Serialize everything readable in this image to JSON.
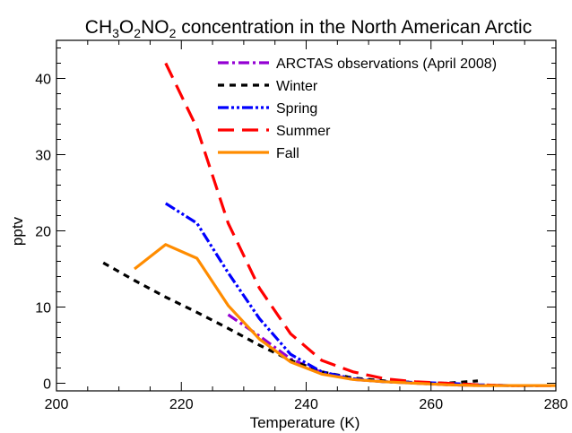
{
  "chart_data": {
    "type": "line",
    "title": {
      "prefix": "CH",
      "sub1": "3",
      "mid1": "O",
      "sub2": "2",
      "mid2": "NO",
      "sub3": "2",
      "suffix": " concentration in the North American Arctic"
    },
    "xlabel": "Temperature (K)",
    "ylabel": "pptv",
    "xlim": [
      200,
      280
    ],
    "ylim": [
      -1,
      45
    ],
    "xticks": [
      200,
      220,
      240,
      260,
      280
    ],
    "yticks": [
      0,
      10,
      20,
      30,
      40
    ],
    "legend_position": "top-right",
    "series": [
      {
        "name": "ARCTAS observations (April 2008)",
        "color": "#9400D3",
        "dash": "dashdot",
        "x": [
          227.5,
          232.5,
          237.5,
          242.5,
          247.5,
          252.5,
          257.5,
          262.5,
          267.5
        ],
        "y": [
          9.0,
          6.2,
          3.2,
          1.4,
          0.5,
          0.2,
          0.0,
          -0.2,
          -0.3
        ]
      },
      {
        "name": "Winter",
        "color": "#000000",
        "dash": "dashed",
        "x": [
          207.5,
          212.5,
          217.5,
          222.5,
          227.5,
          232.5,
          237.5,
          242.5,
          247.5,
          252.5,
          257.5,
          262.5,
          267.5
        ],
        "y": [
          15.8,
          13.5,
          11.3,
          9.3,
          7.2,
          5.0,
          3.0,
          1.5,
          0.7,
          0.3,
          0.1,
          0.0,
          0.3
        ]
      },
      {
        "name": "Spring",
        "color": "#0000FF",
        "dash": "dashdotdot",
        "x": [
          217.5,
          222.5,
          227.5,
          232.5,
          237.5,
          242.5,
          247.5,
          252.5,
          257.5,
          262.5,
          267.5,
          272.5,
          277.5
        ],
        "y": [
          23.6,
          21.0,
          14.5,
          8.5,
          3.8,
          1.5,
          0.6,
          0.2,
          0.1,
          0.0,
          -0.2,
          -0.3,
          -0.3
        ]
      },
      {
        "name": "Summer",
        "color": "#FF0000",
        "dash": "longdash",
        "x": [
          217.5,
          222.5,
          227.5,
          232.5,
          237.5,
          242.5,
          247.5,
          252.5,
          257.5,
          262.5,
          267.5,
          272.5,
          277.5,
          280
        ],
        "y": [
          42.0,
          33.5,
          21.0,
          12.5,
          6.5,
          3.0,
          1.5,
          0.6,
          0.2,
          0.0,
          -0.2,
          -0.3,
          -0.3,
          -0.3
        ]
      },
      {
        "name": "Fall",
        "color": "#FF8C00",
        "dash": "solid",
        "x": [
          212.5,
          217.5,
          222.5,
          227.5,
          232.5,
          237.5,
          242.5,
          247.5,
          252.5,
          257.5,
          262.5,
          267.5,
          272.5,
          277.5,
          280
        ],
        "y": [
          15.0,
          18.2,
          16.4,
          10.2,
          5.8,
          2.8,
          1.2,
          0.5,
          0.2,
          0.0,
          -0.2,
          -0.3,
          -0.3,
          -0.3,
          -0.3
        ]
      }
    ]
  }
}
